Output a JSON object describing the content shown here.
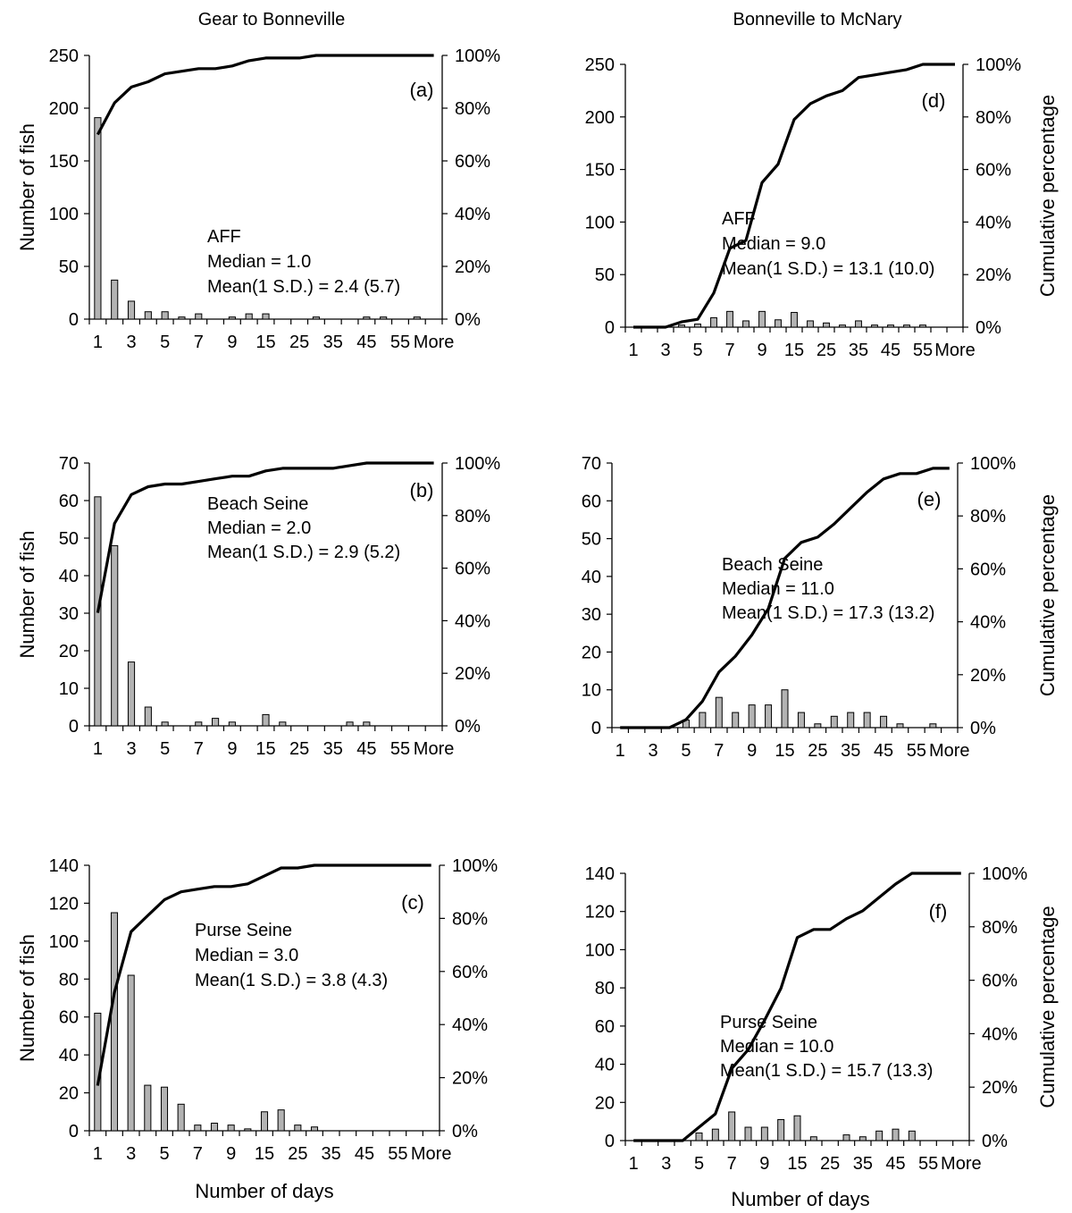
{
  "headers": {
    "left": "Gear to Bonneville",
    "right": "Bonneville to McNary"
  },
  "colors": {
    "bar_fill": "#b3b3b3",
    "bar_stroke": "#000000",
    "line": "#000000"
  },
  "chart_data": [
    {
      "type": "bar",
      "panel": "(a)",
      "categories": [
        "1",
        "2",
        "3",
        "4",
        "5",
        "6",
        "7",
        "8",
        "9",
        "10",
        "15",
        "20",
        "25",
        "30",
        "35",
        "40",
        "45",
        "50",
        "55",
        "60",
        "More"
      ],
      "x_tick_labels": [
        "1",
        "3",
        "5",
        "7",
        "9",
        "15",
        "25",
        "35",
        "45",
        "55",
        "More"
      ],
      "series": [
        {
          "values": [
            191,
            37,
            17,
            7,
            7,
            2,
            5,
            0,
            2,
            5,
            5,
            0,
            0,
            2,
            0,
            0,
            2,
            2,
            0,
            2,
            0
          ]
        },
        {
          "axis": "right",
          "values": [
            70,
            82,
            88,
            90,
            93,
            94,
            95,
            95,
            96,
            98,
            99,
            99,
            99,
            100,
            100,
            100,
            100,
            100,
            100,
            100,
            100
          ]
        }
      ],
      "ylabel": "Number of fish",
      "ylim": [
        0,
        250
      ],
      "y_ticks": [
        0,
        50,
        100,
        150,
        200,
        250
      ],
      "y2label": "",
      "y2lim": [
        0,
        100
      ],
      "y2_ticks": [
        "0%",
        "20%",
        "40%",
        "60%",
        "80%",
        "100%"
      ],
      "xlabel": "",
      "annotation": [
        "AFF",
        "Median = 1.0",
        "Mean(1 S.D.) = 2.4 (5.7)"
      ]
    },
    {
      "type": "bar",
      "panel": "(b)",
      "categories": [
        "1",
        "2",
        "3",
        "4",
        "5",
        "6",
        "7",
        "8",
        "9",
        "10",
        "15",
        "20",
        "25",
        "30",
        "35",
        "40",
        "45",
        "50",
        "55",
        "60",
        "More"
      ],
      "x_tick_labels": [
        "1",
        "3",
        "5",
        "7",
        "9",
        "15",
        "25",
        "35",
        "45",
        "55",
        "More"
      ],
      "series": [
        {
          "values": [
            61,
            48,
            17,
            5,
            1,
            0,
            1,
            2,
            1,
            0,
            3,
            1,
            0,
            0,
            0,
            1,
            1,
            0,
            0,
            0,
            0
          ]
        },
        {
          "axis": "right",
          "values": [
            43,
            77,
            88,
            91,
            92,
            92,
            93,
            94,
            95,
            95,
            97,
            98,
            98,
            98,
            98,
            99,
            100,
            100,
            100,
            100,
            100
          ]
        }
      ],
      "ylabel": "Number of fish",
      "ylim": [
        0,
        70
      ],
      "y_ticks": [
        0,
        10,
        20,
        30,
        40,
        50,
        60,
        70
      ],
      "y2label": "",
      "y2lim": [
        0,
        100
      ],
      "y2_ticks": [
        "0%",
        "20%",
        "40%",
        "60%",
        "80%",
        "100%"
      ],
      "xlabel": "",
      "annotation": [
        "Beach Seine",
        "Median = 2.0",
        "Mean(1 S.D.) = 2.9 (5.2)"
      ]
    },
    {
      "type": "bar",
      "panel": "(c)",
      "categories": [
        "1",
        "2",
        "3",
        "4",
        "5",
        "6",
        "7",
        "8",
        "9",
        "10",
        "15",
        "20",
        "25",
        "30",
        "35",
        "40",
        "45",
        "50",
        "55",
        "60",
        "More"
      ],
      "x_tick_labels": [
        "1",
        "3",
        "5",
        "7",
        "9",
        "15",
        "25",
        "35",
        "45",
        "55",
        "More"
      ],
      "series": [
        {
          "values": [
            62,
            115,
            82,
            24,
            23,
            14,
            3,
            4,
            3,
            1,
            10,
            11,
            3,
            2,
            0,
            0,
            0,
            0,
            0,
            0,
            0
          ]
        },
        {
          "axis": "right",
          "values": [
            17,
            52,
            75,
            81,
            87,
            90,
            91,
            92,
            92,
            93,
            96,
            99,
            99,
            100,
            100,
            100,
            100,
            100,
            100,
            100,
            100
          ]
        }
      ],
      "ylabel": "Number of fish",
      "ylim": [
        0,
        140
      ],
      "y_ticks": [
        0,
        20,
        40,
        60,
        80,
        100,
        120,
        140
      ],
      "y2label": "",
      "y2lim": [
        0,
        100
      ],
      "y2_ticks": [
        "0%",
        "20%",
        "40%",
        "60%",
        "80%",
        "100%"
      ],
      "xlabel": "Number of days",
      "annotation": [
        "Purse Seine",
        "Median = 3.0",
        "Mean(1 S.D.) = 3.8 (4.3)"
      ]
    },
    {
      "type": "bar",
      "panel": "(d)",
      "categories": [
        "1",
        "2",
        "3",
        "4",
        "5",
        "6",
        "7",
        "8",
        "9",
        "10",
        "15",
        "20",
        "25",
        "30",
        "35",
        "40",
        "45",
        "50",
        "55",
        "60",
        "More"
      ],
      "x_tick_labels": [
        "1",
        "3",
        "5",
        "7",
        "9",
        "15",
        "25",
        "35",
        "45",
        "55",
        "More"
      ],
      "series": [
        {
          "values": [
            0,
            0,
            0,
            2,
            3,
            9,
            15,
            6,
            15,
            7,
            14,
            6,
            4,
            2,
            6,
            2,
            2,
            2,
            2,
            0,
            0
          ]
        },
        {
          "axis": "right",
          "values": [
            0,
            0,
            0,
            2,
            3,
            13,
            30,
            33,
            55,
            62,
            79,
            85,
            88,
            90,
            95,
            96,
            97,
            98,
            100,
            100,
            100
          ]
        }
      ],
      "ylabel": "",
      "ylim": [
        0,
        250
      ],
      "y_ticks": [
        0,
        50,
        100,
        150,
        200,
        250
      ],
      "y2label": "Cumulative percentage",
      "y2lim": [
        0,
        100
      ],
      "y2_ticks": [
        "0%",
        "20%",
        "40%",
        "60%",
        "80%",
        "100%"
      ],
      "xlabel": "",
      "annotation": [
        "AFF",
        "Median = 9.0",
        "Mean(1 S.D.) = 13.1 (10.0)"
      ]
    },
    {
      "type": "bar",
      "panel": "(e)",
      "categories": [
        "1",
        "2",
        "3",
        "4",
        "5",
        "6",
        "7",
        "8",
        "9",
        "10",
        "15",
        "20",
        "25",
        "30",
        "35",
        "40",
        "45",
        "50",
        "55",
        "60",
        "More"
      ],
      "x_tick_labels": [
        "1",
        "3",
        "5",
        "7",
        "9",
        "15",
        "25",
        "35",
        "45",
        "55",
        "More"
      ],
      "series": [
        {
          "values": [
            0,
            0,
            0,
            0,
            2,
            4,
            8,
            4,
            6,
            6,
            10,
            4,
            1,
            3,
            4,
            4,
            3,
            1,
            0,
            1,
            0
          ]
        },
        {
          "axis": "right",
          "values": [
            0,
            0,
            0,
            0,
            3,
            10,
            21,
            27,
            35,
            45,
            64,
            70,
            72,
            77,
            83,
            89,
            94,
            96,
            96,
            98,
            98
          ]
        }
      ],
      "ylabel": "",
      "ylim": [
        0,
        70
      ],
      "y_ticks": [
        0,
        10,
        20,
        30,
        40,
        50,
        60,
        70
      ],
      "y2label": "Cumulative percentage",
      "y2lim": [
        0,
        100
      ],
      "y2_ticks": [
        "0%",
        "20%",
        "40%",
        "60%",
        "80%",
        "100%"
      ],
      "xlabel": "",
      "annotation": [
        "Beach Seine",
        "Median = 11.0",
        "Mean(1 S.D.) = 17.3 (13.2)"
      ]
    },
    {
      "type": "bar",
      "panel": "(f)",
      "categories": [
        "1",
        "2",
        "3",
        "4",
        "5",
        "6",
        "7",
        "8",
        "9",
        "10",
        "15",
        "20",
        "25",
        "30",
        "35",
        "40",
        "45",
        "50",
        "55",
        "60",
        "More"
      ],
      "x_tick_labels": [
        "1",
        "3",
        "5",
        "7",
        "9",
        "15",
        "25",
        "35",
        "45",
        "55",
        "More"
      ],
      "series": [
        {
          "values": [
            0,
            0,
            0,
            0,
            4,
            6,
            15,
            7,
            7,
            11,
            13,
            2,
            0,
            3,
            2,
            5,
            6,
            5,
            0,
            0,
            0
          ]
        },
        {
          "axis": "right",
          "values": [
            0,
            0,
            0,
            0,
            5,
            10,
            27,
            34,
            45,
            57,
            76,
            79,
            79,
            83,
            86,
            91,
            96,
            100,
            100,
            100,
            100
          ]
        }
      ],
      "ylabel": "",
      "ylim": [
        0,
        140
      ],
      "y_ticks": [
        0,
        20,
        40,
        60,
        80,
        100,
        120,
        140
      ],
      "y2label": "Cumulative percentage",
      "y2lim": [
        0,
        100
      ],
      "y2_ticks": [
        "0%",
        "20%",
        "40%",
        "60%",
        "80%",
        "100%"
      ],
      "xlabel": "Number of days",
      "annotation": [
        "Purse Seine",
        "Median = 10.0",
        "Mean(1 S.D.) = 15.7 (13.3)"
      ]
    }
  ]
}
